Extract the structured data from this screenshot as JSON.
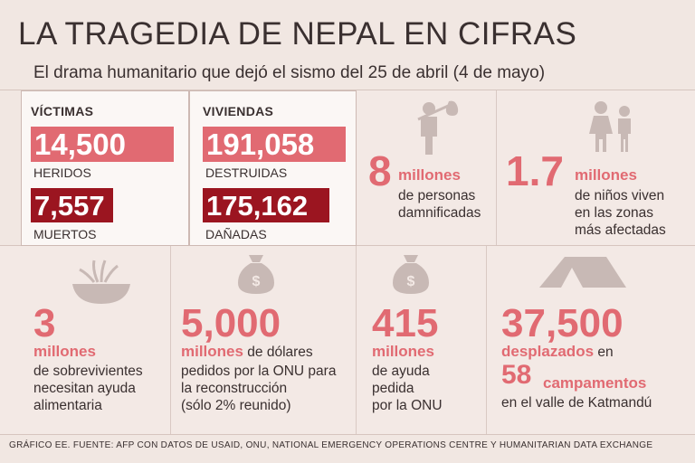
{
  "title": "LA TRAGEDIA DE NEPAL EN CIFRAS",
  "subtitle": "El drama humanitario que dejó el sismo del 25 de abril (4 de mayo)",
  "victimas": {
    "header": "VÍCTIMAS",
    "heridos_value": "14,500",
    "heridos_label": "HERIDOS",
    "muertos_value": "7,557",
    "muertos_label": "MUERTOS"
  },
  "viviendas": {
    "header": "VIVIENDAS",
    "destruidas_value": "191,058",
    "destruidas_label": "DESTRUIDAS",
    "danadas_value": "175,162",
    "danadas_label": "DAÑADAS"
  },
  "damnificados": {
    "value": "8",
    "unit": "millones",
    "line1": "de personas",
    "line2": "damnificadas"
  },
  "ninos": {
    "value": "1.7",
    "unit": "millones",
    "line1": "de niños viven",
    "line2": "en las zonas",
    "line3": "más afectadas"
  },
  "alimentos": {
    "value": "3",
    "unit": "millones",
    "line1": "de sobrevivientes",
    "line2": "necesitan ayuda",
    "line3": "alimentaria"
  },
  "dolares": {
    "value": "5,000",
    "unit": "millones",
    "line1_rest": " de dólares",
    "line2": "pedidos por la ONU para",
    "line3": "la reconstrucción",
    "line4": "(sólo 2% reunido)"
  },
  "ayuda": {
    "value": "415",
    "unit": "millones",
    "line1": "de ayuda",
    "line2": "pedida",
    "line3": "por la ONU"
  },
  "desplazados": {
    "value": "37,500",
    "unit": "desplazados",
    "unit_rest": " en",
    "camp_value": "58",
    "camp_label": "campamentos",
    "line_last": "en el valle de Katmandú"
  },
  "footer": "GRÁFICO EE. FUENTE: AFP CON DATOS DE USAID, ONU, NATIONAL EMERGENCY OPERATIONS CENTRE Y HUMANITARIAN DATA EXCHANGE",
  "colors": {
    "pink": "#e16a72",
    "dark_red": "#9b1520",
    "background": "#f1e7e2",
    "icon_gray": "#c8b9b5"
  }
}
